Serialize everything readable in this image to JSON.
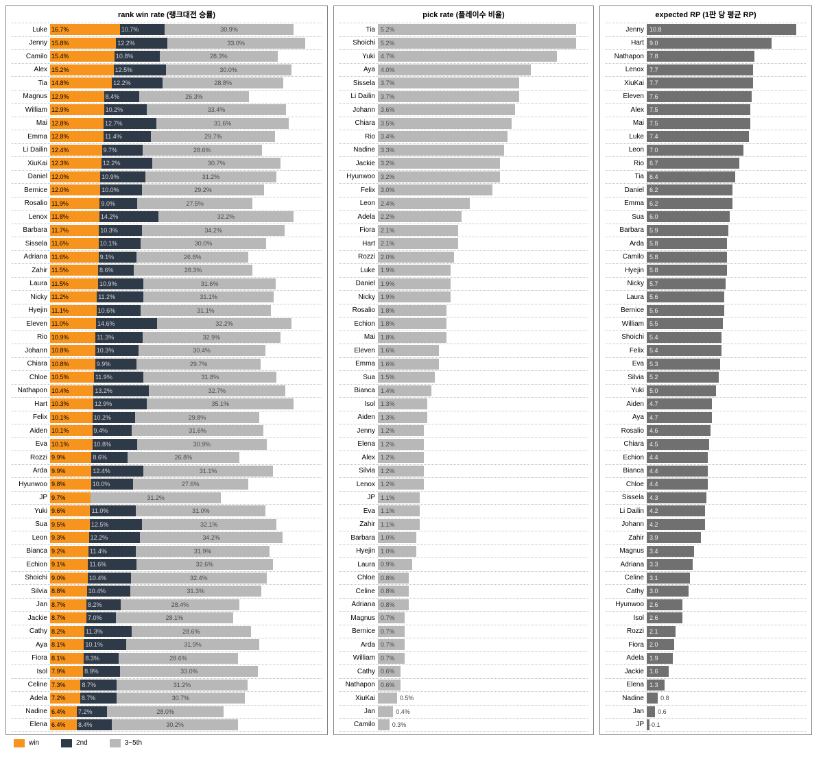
{
  "titles": {
    "winrate": "rank win rate (랭크대전 승률)",
    "pickrate": "pick rate (플레이수 비율)",
    "rp": "expected RP (1판 당 평균 RP)"
  },
  "legend": {
    "win": "win",
    "second": "2nd",
    "rest": "3~5th"
  },
  "colors": {
    "win": "#f7941d",
    "second": "#2f3a48",
    "rest": "#b8b8b8",
    "pick_bar": "#b8b8b8",
    "rp_bar": "#707070",
    "border": "#808080",
    "grid": "#c0c0c0",
    "bg": "#ffffff"
  },
  "scales": {
    "winrate_max_pct": 65,
    "pickrate_max_pct": 5.5,
    "rp_min": -0.2,
    "rp_max": 11.5
  },
  "winrate": [
    {
      "name": "Luke",
      "win": 16.7,
      "second": 10.7,
      "rest": 30.9
    },
    {
      "name": "Jenny",
      "win": 15.8,
      "second": 12.2,
      "rest": 33.0
    },
    {
      "name": "Camilo",
      "win": 15.4,
      "second": 10.8,
      "rest": 28.3
    },
    {
      "name": "Alex",
      "win": 15.2,
      "second": 12.5,
      "rest": 30.0
    },
    {
      "name": "Tia",
      "win": 14.8,
      "second": 12.2,
      "rest": 28.8
    },
    {
      "name": "Magnus",
      "win": 12.9,
      "second": 8.4,
      "rest": 26.3
    },
    {
      "name": "William",
      "win": 12.9,
      "second": 10.2,
      "rest": 33.4
    },
    {
      "name": "Mai",
      "win": 12.8,
      "second": 12.7,
      "rest": 31.6
    },
    {
      "name": "Emma",
      "win": 12.8,
      "second": 11.4,
      "rest": 29.7
    },
    {
      "name": "Li Dailin",
      "win": 12.4,
      "second": 9.7,
      "rest": 28.6
    },
    {
      "name": "XiuKai",
      "win": 12.3,
      "second": 12.2,
      "rest": 30.7
    },
    {
      "name": "Daniel",
      "win": 12.0,
      "second": 10.9,
      "rest": 31.2
    },
    {
      "name": "Bernice",
      "win": 12.0,
      "second": 10.0,
      "rest": 29.2
    },
    {
      "name": "Rosalio",
      "win": 11.9,
      "second": 9.0,
      "rest": 27.5
    },
    {
      "name": "Lenox",
      "win": 11.8,
      "second": 14.2,
      "rest": 32.2
    },
    {
      "name": "Barbara",
      "win": 11.7,
      "second": 10.3,
      "rest": 34.2
    },
    {
      "name": "Sissela",
      "win": 11.6,
      "second": 10.1,
      "rest": 30.0
    },
    {
      "name": "Adriana",
      "win": 11.6,
      "second": 9.1,
      "rest": 26.8
    },
    {
      "name": "Zahir",
      "win": 11.5,
      "second": 8.6,
      "rest": 28.3
    },
    {
      "name": "Laura",
      "win": 11.5,
      "second": 10.9,
      "rest": 31.6
    },
    {
      "name": "Nicky",
      "win": 11.2,
      "second": 11.2,
      "rest": 31.1
    },
    {
      "name": "Hyejin",
      "win": 11.1,
      "second": 10.6,
      "rest": 31.1
    },
    {
      "name": "Eleven",
      "win": 11.0,
      "second": 14.6,
      "rest": 32.2
    },
    {
      "name": "Rio",
      "win": 10.9,
      "second": 11.3,
      "rest": 32.9
    },
    {
      "name": "Johann",
      "win": 10.8,
      "second": 10.3,
      "rest": 30.4
    },
    {
      "name": "Chiara",
      "win": 10.8,
      "second": 9.9,
      "rest": 29.7
    },
    {
      "name": "Chloe",
      "win": 10.5,
      "second": 11.9,
      "rest": 31.8
    },
    {
      "name": "Nathapon",
      "win": 10.4,
      "second": 13.2,
      "rest": 32.7
    },
    {
      "name": "Hart",
      "win": 10.3,
      "second": 12.9,
      "rest": 35.1
    },
    {
      "name": "Felix",
      "win": 10.1,
      "second": 10.2,
      "rest": 29.8
    },
    {
      "name": "Aiden",
      "win": 10.1,
      "second": 9.4,
      "rest": 31.6
    },
    {
      "name": "Eva",
      "win": 10.1,
      "second": 10.8,
      "rest": 30.9
    },
    {
      "name": "Rozzi",
      "win": 9.9,
      "second": 8.6,
      "rest": 26.8
    },
    {
      "name": "Arda",
      "win": 9.9,
      "second": 12.4,
      "rest": 31.1
    },
    {
      "name": "Hyunwoo",
      "win": 9.8,
      "second": 10.0,
      "rest": 27.6
    },
    {
      "name": "JP",
      "win": 9.7,
      "second": 0,
      "rest": 31.2
    },
    {
      "name": "Yuki",
      "win": 9.6,
      "second": 11.0,
      "rest": 31.0
    },
    {
      "name": "Sua",
      "win": 9.5,
      "second": 12.5,
      "rest": 32.1
    },
    {
      "name": "Leon",
      "win": 9.3,
      "second": 12.2,
      "rest": 34.2
    },
    {
      "name": "Bianca",
      "win": 9.2,
      "second": 11.4,
      "rest": 31.9
    },
    {
      "name": "Echion",
      "win": 9.1,
      "second": 11.6,
      "rest": 32.6
    },
    {
      "name": "Shoichi",
      "win": 9.0,
      "second": 10.4,
      "rest": 32.4
    },
    {
      "name": "Silvia",
      "win": 8.8,
      "second": 10.4,
      "rest": 31.3
    },
    {
      "name": "Jan",
      "win": 8.7,
      "second": 8.2,
      "rest": 28.4
    },
    {
      "name": "Jackie",
      "win": 8.7,
      "second": 7.0,
      "rest": 28.1
    },
    {
      "name": "Cathy",
      "win": 8.2,
      "second": 11.3,
      "rest": 28.6
    },
    {
      "name": "Aya",
      "win": 8.1,
      "second": 10.1,
      "rest": 31.9
    },
    {
      "name": "Fiora",
      "win": 8.1,
      "second": 8.3,
      "rest": 28.6
    },
    {
      "name": "Isol",
      "win": 7.9,
      "second": 8.9,
      "rest": 33.0
    },
    {
      "name": "Celine",
      "win": 7.3,
      "second": 8.7,
      "rest": 31.2
    },
    {
      "name": "Adela",
      "win": 7.2,
      "second": 8.7,
      "rest": 30.7
    },
    {
      "name": "Nadine",
      "win": 6.4,
      "second": 7.2,
      "rest": 28.0
    },
    {
      "name": "Elena",
      "win": 6.4,
      "second": 8.4,
      "rest": 30.2
    }
  ],
  "pickrate": [
    {
      "name": "Tia",
      "v": 5.2
    },
    {
      "name": "Shoichi",
      "v": 5.2
    },
    {
      "name": "Yuki",
      "v": 4.7
    },
    {
      "name": "Aya",
      "v": 4.0
    },
    {
      "name": "Sissela",
      "v": 3.7
    },
    {
      "name": "Li Dailin",
      "v": 3.7
    },
    {
      "name": "Johann",
      "v": 3.6
    },
    {
      "name": "Chiara",
      "v": 3.5
    },
    {
      "name": "Rio",
      "v": 3.4
    },
    {
      "name": "Nadine",
      "v": 3.3
    },
    {
      "name": "Jackie",
      "v": 3.2
    },
    {
      "name": "Hyunwoo",
      "v": 3.2
    },
    {
      "name": "Felix",
      "v": 3.0
    },
    {
      "name": "Leon",
      "v": 2.4
    },
    {
      "name": "Adela",
      "v": 2.2
    },
    {
      "name": "Fiora",
      "v": 2.1
    },
    {
      "name": "Hart",
      "v": 2.1
    },
    {
      "name": "Rozzi",
      "v": 2.0
    },
    {
      "name": "Luke",
      "v": 1.9
    },
    {
      "name": "Daniel",
      "v": 1.9
    },
    {
      "name": "Nicky",
      "v": 1.9
    },
    {
      "name": "Rosalio",
      "v": 1.8
    },
    {
      "name": "Echion",
      "v": 1.8
    },
    {
      "name": "Mai",
      "v": 1.8
    },
    {
      "name": "Eleven",
      "v": 1.6
    },
    {
      "name": "Emma",
      "v": 1.6
    },
    {
      "name": "Sua",
      "v": 1.5
    },
    {
      "name": "Bianca",
      "v": 1.4
    },
    {
      "name": "Isol",
      "v": 1.3
    },
    {
      "name": "Aiden",
      "v": 1.3
    },
    {
      "name": "Jenny",
      "v": 1.2
    },
    {
      "name": "Elena",
      "v": 1.2
    },
    {
      "name": "Alex",
      "v": 1.2
    },
    {
      "name": "Silvia",
      "v": 1.2
    },
    {
      "name": "Lenox",
      "v": 1.2
    },
    {
      "name": "JP",
      "v": 1.1
    },
    {
      "name": "Eva",
      "v": 1.1
    },
    {
      "name": "Zahir",
      "v": 1.1
    },
    {
      "name": "Barbara",
      "v": 1.0
    },
    {
      "name": "Hyejin",
      "v": 1.0
    },
    {
      "name": "Laura",
      "v": 0.9
    },
    {
      "name": "Chloe",
      "v": 0.8
    },
    {
      "name": "Celine",
      "v": 0.8
    },
    {
      "name": "Adriana",
      "v": 0.8
    },
    {
      "name": "Magnus",
      "v": 0.7
    },
    {
      "name": "Bernice",
      "v": 0.7
    },
    {
      "name": "Arda",
      "v": 0.7
    },
    {
      "name": "William",
      "v": 0.7
    },
    {
      "name": "Cathy",
      "v": 0.6
    },
    {
      "name": "Nathapon",
      "v": 0.6
    },
    {
      "name": "XiuKai",
      "v": 0.5
    },
    {
      "name": "Jan",
      "v": 0.4
    },
    {
      "name": "Camilo",
      "v": 0.3
    }
  ],
  "rp": [
    {
      "name": "Jenny",
      "v": 10.8
    },
    {
      "name": "Hart",
      "v": 9.0
    },
    {
      "name": "Nathapon",
      "v": 7.8
    },
    {
      "name": "Lenox",
      "v": 7.7
    },
    {
      "name": "XiuKai",
      "v": 7.7
    },
    {
      "name": "Eleven",
      "v": 7.6
    },
    {
      "name": "Alex",
      "v": 7.5
    },
    {
      "name": "Mai",
      "v": 7.5
    },
    {
      "name": "Luke",
      "v": 7.4
    },
    {
      "name": "Leon",
      "v": 7.0
    },
    {
      "name": "Rio",
      "v": 6.7
    },
    {
      "name": "Tia",
      "v": 6.4
    },
    {
      "name": "Daniel",
      "v": 6.2
    },
    {
      "name": "Emma",
      "v": 6.2
    },
    {
      "name": "Sua",
      "v": 6.0
    },
    {
      "name": "Barbara",
      "v": 5.9
    },
    {
      "name": "Arda",
      "v": 5.8
    },
    {
      "name": "Camilo",
      "v": 5.8
    },
    {
      "name": "Hyejin",
      "v": 5.8
    },
    {
      "name": "Nicky",
      "v": 5.7
    },
    {
      "name": "Laura",
      "v": 5.6
    },
    {
      "name": "Bernice",
      "v": 5.6
    },
    {
      "name": "William",
      "v": 5.5
    },
    {
      "name": "Shoichi",
      "v": 5.4
    },
    {
      "name": "Felix",
      "v": 5.4
    },
    {
      "name": "Eva",
      "v": 5.3
    },
    {
      "name": "Silvia",
      "v": 5.2
    },
    {
      "name": "Yuki",
      "v": 5.0
    },
    {
      "name": "Aiden",
      "v": 4.7
    },
    {
      "name": "Aya",
      "v": 4.7
    },
    {
      "name": "Rosalio",
      "v": 4.6
    },
    {
      "name": "Chiara",
      "v": 4.5
    },
    {
      "name": "Echion",
      "v": 4.4
    },
    {
      "name": "Bianca",
      "v": 4.4
    },
    {
      "name": "Chloe",
      "v": 4.4
    },
    {
      "name": "Sissela",
      "v": 4.3
    },
    {
      "name": "Li Dailin",
      "v": 4.2
    },
    {
      "name": "Johann",
      "v": 4.2
    },
    {
      "name": "Zahir",
      "v": 3.9
    },
    {
      "name": "Magnus",
      "v": 3.4
    },
    {
      "name": "Adriana",
      "v": 3.3
    },
    {
      "name": "Celine",
      "v": 3.1
    },
    {
      "name": "Cathy",
      "v": 3.0
    },
    {
      "name": "Hyunwoo",
      "v": 2.6
    },
    {
      "name": "Isol",
      "v": 2.6
    },
    {
      "name": "Rozzi",
      "v": 2.1
    },
    {
      "name": "Fiora",
      "v": 2.0
    },
    {
      "name": "Adela",
      "v": 1.9
    },
    {
      "name": "Jackie",
      "v": 1.6
    },
    {
      "name": "Elena",
      "v": 1.3
    },
    {
      "name": "Nadine",
      "v": 0.8
    },
    {
      "name": "Jan",
      "v": 0.6
    },
    {
      "name": "JP",
      "v": -0.1
    }
  ]
}
